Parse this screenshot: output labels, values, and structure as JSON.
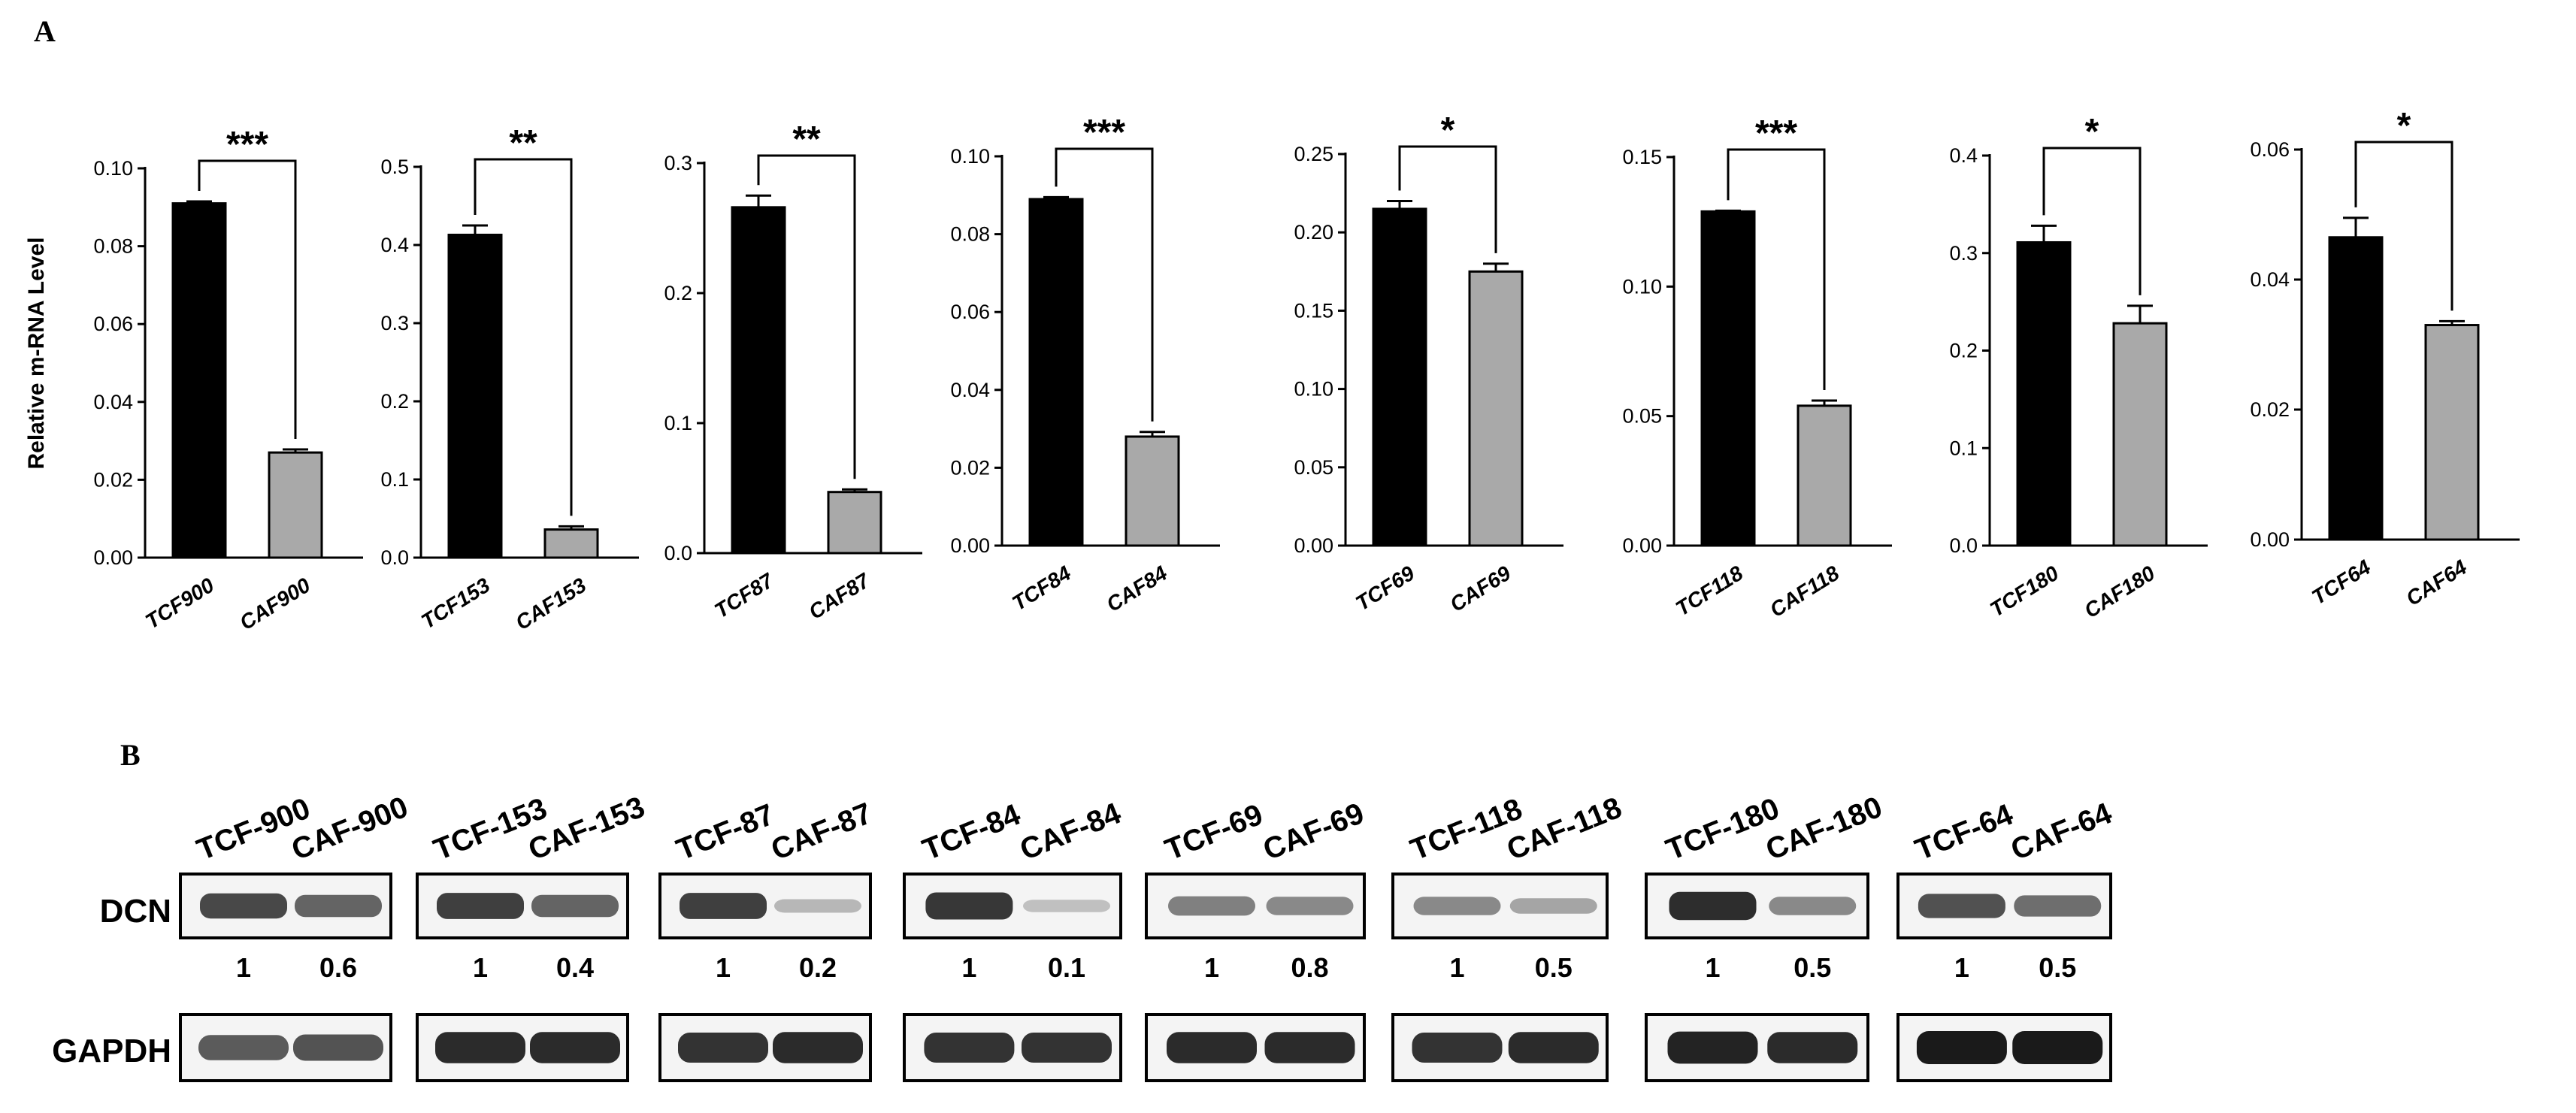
{
  "panel_labels": {
    "a": "A",
    "b": "B"
  },
  "colors": {
    "tcf_bar": "#000000",
    "caf_bar": "#a9a9a9",
    "axis": "#000000",
    "blot_bg": "#f4f4f4",
    "band": "#1a1a1a"
  },
  "chart_data": [
    {
      "type": "bar",
      "categories": [
        "TCF900",
        "CAF900"
      ],
      "values": [
        0.091,
        0.027
      ],
      "errors": [
        0.0005,
        0.0008
      ],
      "ylim": [
        0,
        0.1
      ],
      "yticks": [
        "0.00",
        "0.02",
        "0.04",
        "0.06",
        "0.08",
        "0.10"
      ],
      "ylabel": "Relative m-RNA Level",
      "significance": "***"
    },
    {
      "type": "bar",
      "categories": [
        "TCF153",
        "CAF153"
      ],
      "values": [
        0.413,
        0.036
      ],
      "errors": [
        0.012,
        0.004
      ],
      "ylim": [
        0,
        0.5
      ],
      "yticks": [
        "0.0",
        "0.1",
        "0.2",
        "0.3",
        "0.4",
        "0.5"
      ],
      "significance": "**"
    },
    {
      "type": "bar",
      "categories": [
        "TCF87",
        "CAF87"
      ],
      "values": [
        0.266,
        0.047
      ],
      "errors": [
        0.009,
        0.002
      ],
      "ylim": [
        0,
        0.3
      ],
      "yticks": [
        "0.0",
        "0.1",
        "0.2",
        "0.3"
      ],
      "significance": "**"
    },
    {
      "type": "bar",
      "categories": [
        "TCF84",
        "CAF84"
      ],
      "values": [
        0.089,
        0.028
      ],
      "errors": [
        0.0005,
        0.0012
      ],
      "ylim": [
        0,
        0.1
      ],
      "yticks": [
        "0.00",
        "0.02",
        "0.04",
        "0.06",
        "0.08",
        "0.10"
      ],
      "significance": "***"
    },
    {
      "type": "bar",
      "categories": [
        "TCF69",
        "CAF69"
      ],
      "values": [
        0.215,
        0.175
      ],
      "errors": [
        0.005,
        0.005
      ],
      "ylim": [
        0,
        0.25
      ],
      "yticks": [
        "0.00",
        "0.05",
        "0.10",
        "0.15",
        "0.20",
        "0.25"
      ],
      "significance": "*"
    },
    {
      "type": "bar",
      "categories": [
        "TCF118",
        "CAF118"
      ],
      "values": [
        0.129,
        0.054
      ],
      "errors": [
        0.0003,
        0.002
      ],
      "ylim": [
        0,
        0.15
      ],
      "yticks": [
        "0.00",
        "0.05",
        "0.10",
        "0.15"
      ],
      "significance": "***"
    },
    {
      "type": "bar",
      "categories": [
        "TCF180",
        "CAF180"
      ],
      "values": [
        0.311,
        0.228
      ],
      "errors": [
        0.017,
        0.018
      ],
      "ylim": [
        0,
        0.4
      ],
      "yticks": [
        "0.0",
        "0.1",
        "0.2",
        "0.3",
        "0.4"
      ],
      "significance": "*"
    },
    {
      "type": "bar",
      "categories": [
        "TCF64",
        "CAF64"
      ],
      "values": [
        0.0465,
        0.033
      ],
      "errors": [
        0.003,
        0.0006
      ],
      "ylim": [
        0,
        0.06
      ],
      "yticks": [
        "0.00",
        "0.02",
        "0.04",
        "0.06"
      ],
      "significance": "*"
    }
  ],
  "western_blot": {
    "row_labels": [
      "DCN",
      "GAPDH"
    ],
    "pairs": [
      {
        "lanes": [
          "TCF-900",
          "CAF-900"
        ],
        "quant": [
          "1",
          "0.6"
        ],
        "dcn": [
          0.75,
          0.6
        ],
        "gapdh": [
          0.6,
          0.65
        ]
      },
      {
        "lanes": [
          "TCF-153",
          "CAF-153"
        ],
        "quant": [
          "1",
          "0.4"
        ],
        "dcn": [
          0.8,
          0.6
        ],
        "gapdh": [
          0.9,
          0.9
        ]
      },
      {
        "lanes": [
          "TCF-87",
          "CAF-87"
        ],
        "quant": [
          "1",
          "0.2"
        ],
        "dcn": [
          0.8,
          0.15
        ],
        "gapdh": [
          0.85,
          0.9
        ]
      },
      {
        "lanes": [
          "TCF-84",
          "CAF-84"
        ],
        "quant": [
          "1",
          "0.1"
        ],
        "dcn": [
          0.85,
          0.1
        ],
        "gapdh": [
          0.85,
          0.85
        ]
      },
      {
        "lanes": [
          "TCF-69",
          "CAF-69"
        ],
        "quant": [
          "1",
          "0.8"
        ],
        "dcn": [
          0.45,
          0.4
        ],
        "gapdh": [
          0.9,
          0.9
        ]
      },
      {
        "lanes": [
          "TCF-118",
          "CAF-118"
        ],
        "quant": [
          "1",
          "0.5"
        ],
        "dcn": [
          0.4,
          0.25
        ],
        "gapdh": [
          0.85,
          0.9
        ]
      },
      {
        "lanes": [
          "TCF-180",
          "CAF-180"
        ],
        "quant": [
          "1",
          "0.5"
        ],
        "dcn": [
          0.9,
          0.4
        ],
        "gapdh": [
          0.95,
          0.9
        ]
      },
      {
        "lanes": [
          "TCF-64",
          "CAF-64"
        ],
        "quant": [
          "1",
          "0.5"
        ],
        "dcn": [
          0.7,
          0.55
        ],
        "gapdh": [
          1.0,
          1.0
        ]
      }
    ]
  }
}
